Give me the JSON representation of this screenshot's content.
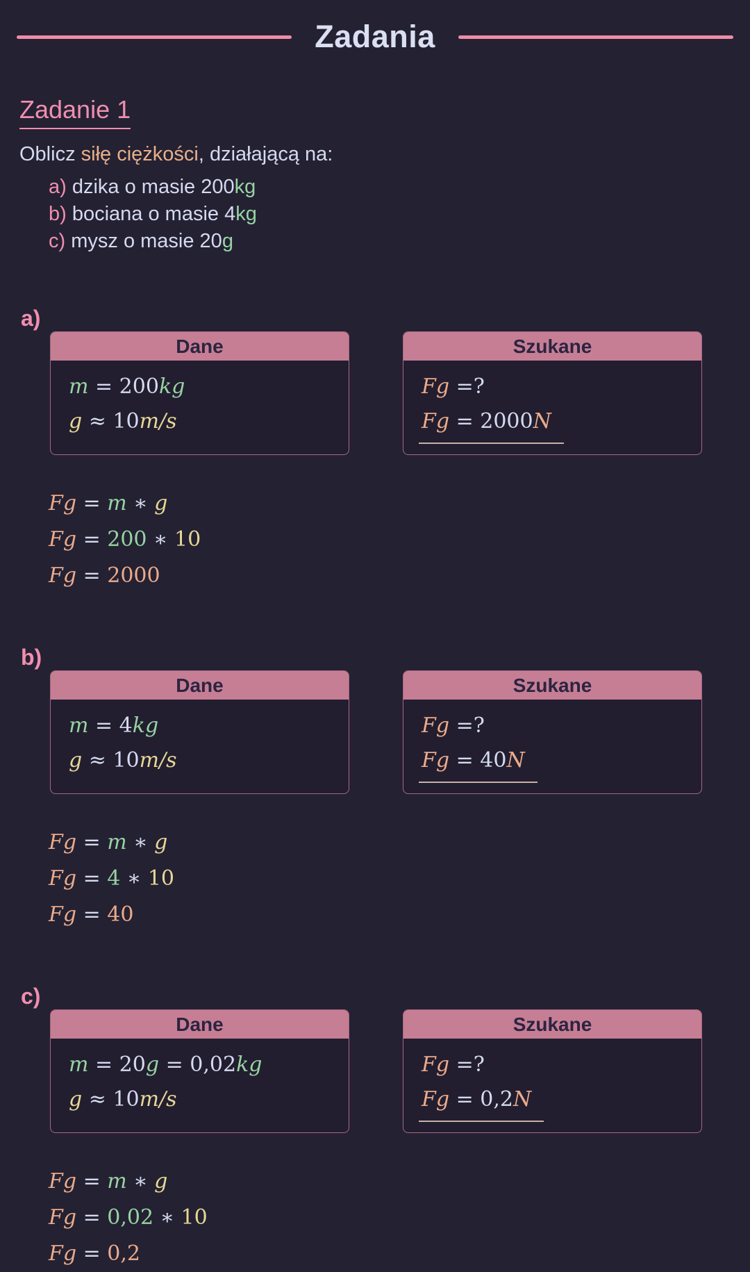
{
  "colors": {
    "light": "#d5daef",
    "green": "#97d3a2",
    "yellow": "#e7d795",
    "orange": "#ebaa8a",
    "pink_accent": "#f08fae",
    "pink_rule": "#ee8da6",
    "header_bg": "#c67e95",
    "header_text": "#2c2440",
    "page_bg": "#242133",
    "answer_underline": "#c7b3a6",
    "highlight": "#e9af89"
  },
  "page": {
    "title": "Zadania"
  },
  "task": {
    "heading": "Zadanie 1",
    "intro_pre": "Oblicz ",
    "intro_highlight": "siłę ciężkości",
    "intro_post": ", działającą na:",
    "items": [
      {
        "marker": "a)",
        "text": " dzika o masie 200",
        "unit": "kg"
      },
      {
        "marker": "b)",
        "text": " bociana o masie 4",
        "unit": "kg"
      },
      {
        "marker": "c)",
        "text": " mysz o masie 20",
        "unit": "g"
      }
    ]
  },
  "sections": [
    {
      "label": "a)",
      "dane": {
        "title": "Dane",
        "lines": [
          [
            {
              "t": "m",
              "c": "green",
              "i": true
            },
            {
              "t": " = ",
              "c": "light"
            },
            {
              "t": "200",
              "c": "light"
            },
            {
              "t": "kg",
              "c": "green",
              "i": true
            }
          ],
          [
            {
              "t": "g",
              "c": "yellow",
              "i": true
            },
            {
              "t": " ≈ ",
              "c": "light"
            },
            {
              "t": "10",
              "c": "light"
            },
            {
              "t": "m/s",
              "c": "yellow",
              "i": true
            }
          ]
        ]
      },
      "szukane": {
        "title": "Szukane",
        "lines": [
          {
            "tokens": [
              {
                "t": "Fg",
                "c": "orange",
                "i": true
              },
              {
                "t": " =?",
                "c": "light"
              }
            ],
            "underline": false
          },
          {
            "tokens": [
              {
                "t": "Fg",
                "c": "orange",
                "i": true
              },
              {
                "t": " = ",
                "c": "light"
              },
              {
                "t": "2000",
                "c": "light"
              },
              {
                "t": "N",
                "c": "orange",
                "i": true
              }
            ],
            "underline": true
          }
        ]
      },
      "steps": [
        [
          {
            "t": "Fg",
            "c": "orange",
            "i": true
          },
          {
            "t": " = ",
            "c": "light"
          },
          {
            "t": "m",
            "c": "green",
            "i": true
          },
          {
            "t": " ∗ ",
            "c": "light"
          },
          {
            "t": "g",
            "c": "yellow",
            "i": true
          }
        ],
        [
          {
            "t": "Fg",
            "c": "orange",
            "i": true
          },
          {
            "t": " = ",
            "c": "light"
          },
          {
            "t": "200",
            "c": "green"
          },
          {
            "t": " ∗ ",
            "c": "light"
          },
          {
            "t": "10",
            "c": "yellow"
          }
        ],
        [
          {
            "t": "Fg",
            "c": "orange",
            "i": true
          },
          {
            "t": " = ",
            "c": "light"
          },
          {
            "t": "2000",
            "c": "orange"
          }
        ]
      ]
    },
    {
      "label": "b)",
      "dane": {
        "title": "Dane",
        "lines": [
          [
            {
              "t": "m",
              "c": "green",
              "i": true
            },
            {
              "t": " = ",
              "c": "light"
            },
            {
              "t": "4",
              "c": "light"
            },
            {
              "t": "kg",
              "c": "green",
              "i": true
            }
          ],
          [
            {
              "t": "g",
              "c": "yellow",
              "i": true
            },
            {
              "t": " ≈ ",
              "c": "light"
            },
            {
              "t": "10",
              "c": "light"
            },
            {
              "t": "m/s",
              "c": "yellow",
              "i": true
            }
          ]
        ]
      },
      "szukane": {
        "title": "Szukane",
        "lines": [
          {
            "tokens": [
              {
                "t": "Fg",
                "c": "orange",
                "i": true
              },
              {
                "t": " =?",
                "c": "light"
              }
            ],
            "underline": false
          },
          {
            "tokens": [
              {
                "t": "Fg",
                "c": "orange",
                "i": true
              },
              {
                "t": " = ",
                "c": "light"
              },
              {
                "t": "40",
                "c": "light"
              },
              {
                "t": "N",
                "c": "orange",
                "i": true
              }
            ],
            "underline": true
          }
        ]
      },
      "steps": [
        [
          {
            "t": "Fg",
            "c": "orange",
            "i": true
          },
          {
            "t": " = ",
            "c": "light"
          },
          {
            "t": "m",
            "c": "green",
            "i": true
          },
          {
            "t": " ∗ ",
            "c": "light"
          },
          {
            "t": "g",
            "c": "yellow",
            "i": true
          }
        ],
        [
          {
            "t": "Fg",
            "c": "orange",
            "i": true
          },
          {
            "t": " = ",
            "c": "light"
          },
          {
            "t": "4",
            "c": "green"
          },
          {
            "t": " ∗ ",
            "c": "light"
          },
          {
            "t": "10",
            "c": "yellow"
          }
        ],
        [
          {
            "t": "Fg",
            "c": "orange",
            "i": true
          },
          {
            "t": " = ",
            "c": "light"
          },
          {
            "t": "40",
            "c": "orange"
          }
        ]
      ]
    },
    {
      "label": "c)",
      "dane": {
        "title": "Dane",
        "lines": [
          [
            {
              "t": "m",
              "c": "green",
              "i": true
            },
            {
              "t": " = ",
              "c": "light"
            },
            {
              "t": "20",
              "c": "light"
            },
            {
              "t": "g",
              "c": "green",
              "i": true
            },
            {
              "t": " = ",
              "c": "light"
            },
            {
              "t": "0,02",
              "c": "light"
            },
            {
              "t": "kg",
              "c": "green",
              "i": true
            }
          ],
          [
            {
              "t": "g",
              "c": "yellow",
              "i": true
            },
            {
              "t": " ≈ ",
              "c": "light"
            },
            {
              "t": "10",
              "c": "light"
            },
            {
              "t": "m/s",
              "c": "yellow",
              "i": true
            }
          ]
        ]
      },
      "szukane": {
        "title": "Szukane",
        "lines": [
          {
            "tokens": [
              {
                "t": "Fg",
                "c": "orange",
                "i": true
              },
              {
                "t": " =?",
                "c": "light"
              }
            ],
            "underline": false
          },
          {
            "tokens": [
              {
                "t": "Fg",
                "c": "orange",
                "i": true
              },
              {
                "t": " = ",
                "c": "light"
              },
              {
                "t": "0,2",
                "c": "light"
              },
              {
                "t": "N",
                "c": "orange",
                "i": true
              }
            ],
            "underline": true
          }
        ]
      },
      "steps": [
        [
          {
            "t": "Fg",
            "c": "orange",
            "i": true
          },
          {
            "t": " = ",
            "c": "light"
          },
          {
            "t": "m",
            "c": "green",
            "i": true
          },
          {
            "t": " ∗ ",
            "c": "light"
          },
          {
            "t": "g",
            "c": "yellow",
            "i": true
          }
        ],
        [
          {
            "t": "Fg",
            "c": "orange",
            "i": true
          },
          {
            "t": " = ",
            "c": "light"
          },
          {
            "t": "0,02",
            "c": "green"
          },
          {
            "t": " ∗ ",
            "c": "light"
          },
          {
            "t": "10",
            "c": "yellow"
          }
        ],
        [
          {
            "t": "Fg",
            "c": "orange",
            "i": true
          },
          {
            "t": " = ",
            "c": "light"
          },
          {
            "t": "0,2",
            "c": "orange"
          }
        ]
      ]
    }
  ]
}
